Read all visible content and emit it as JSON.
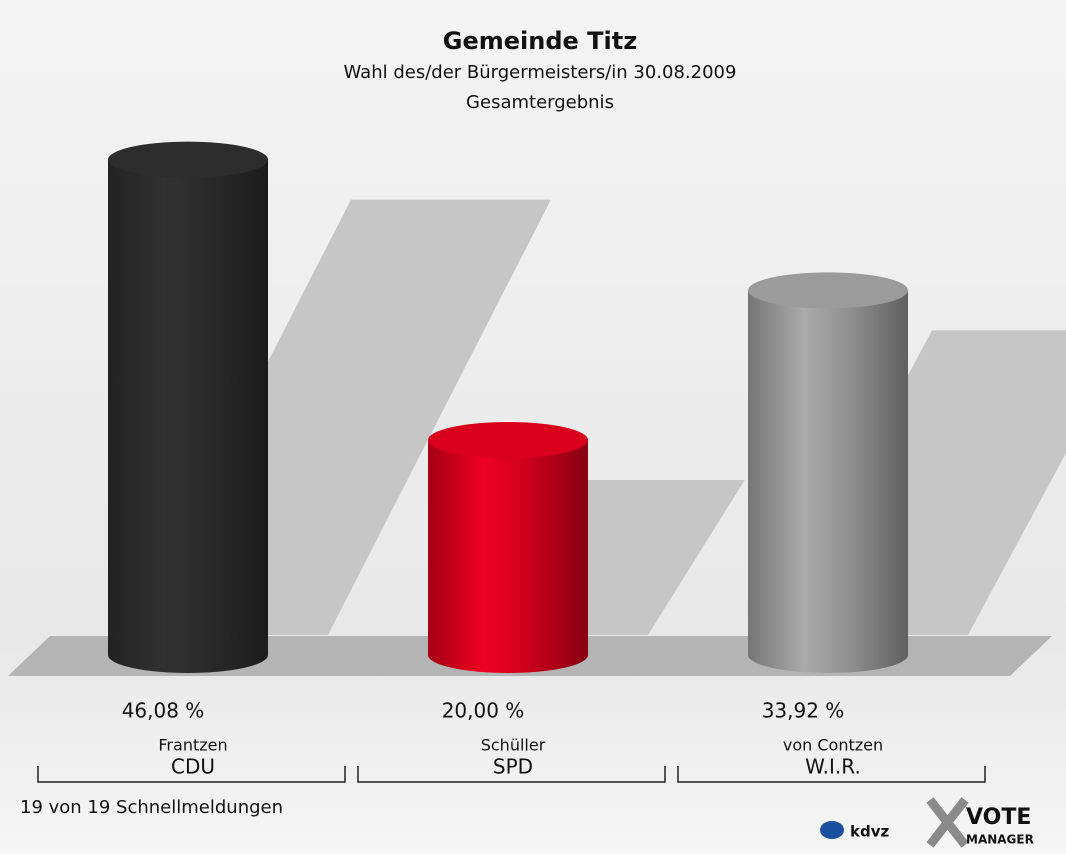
{
  "chart_data": {
    "type": "bar",
    "title": "Gemeinde Titz",
    "subtitle": "Wahl des/der Bürgermeisters/in 30.08.2009",
    "subtitle_2": "Gesamtergebnis",
    "categories": [
      "Frantzen",
      "Schüller",
      "von Contzen"
    ],
    "parties": [
      "CDU",
      "SPD",
      "W.I.R."
    ],
    "values": [
      46.08,
      20.0,
      33.92
    ],
    "value_labels": [
      "46,08 %",
      "20,00 %",
      "33,92 %"
    ],
    "colors": [
      "#2b2b2b",
      "#d0001c",
      "#949494"
    ],
    "footnote": "19 von 19 Schnellmeldungen",
    "logo": [
      "kdvz",
      "VOTE",
      "MANAGER"
    ]
  }
}
